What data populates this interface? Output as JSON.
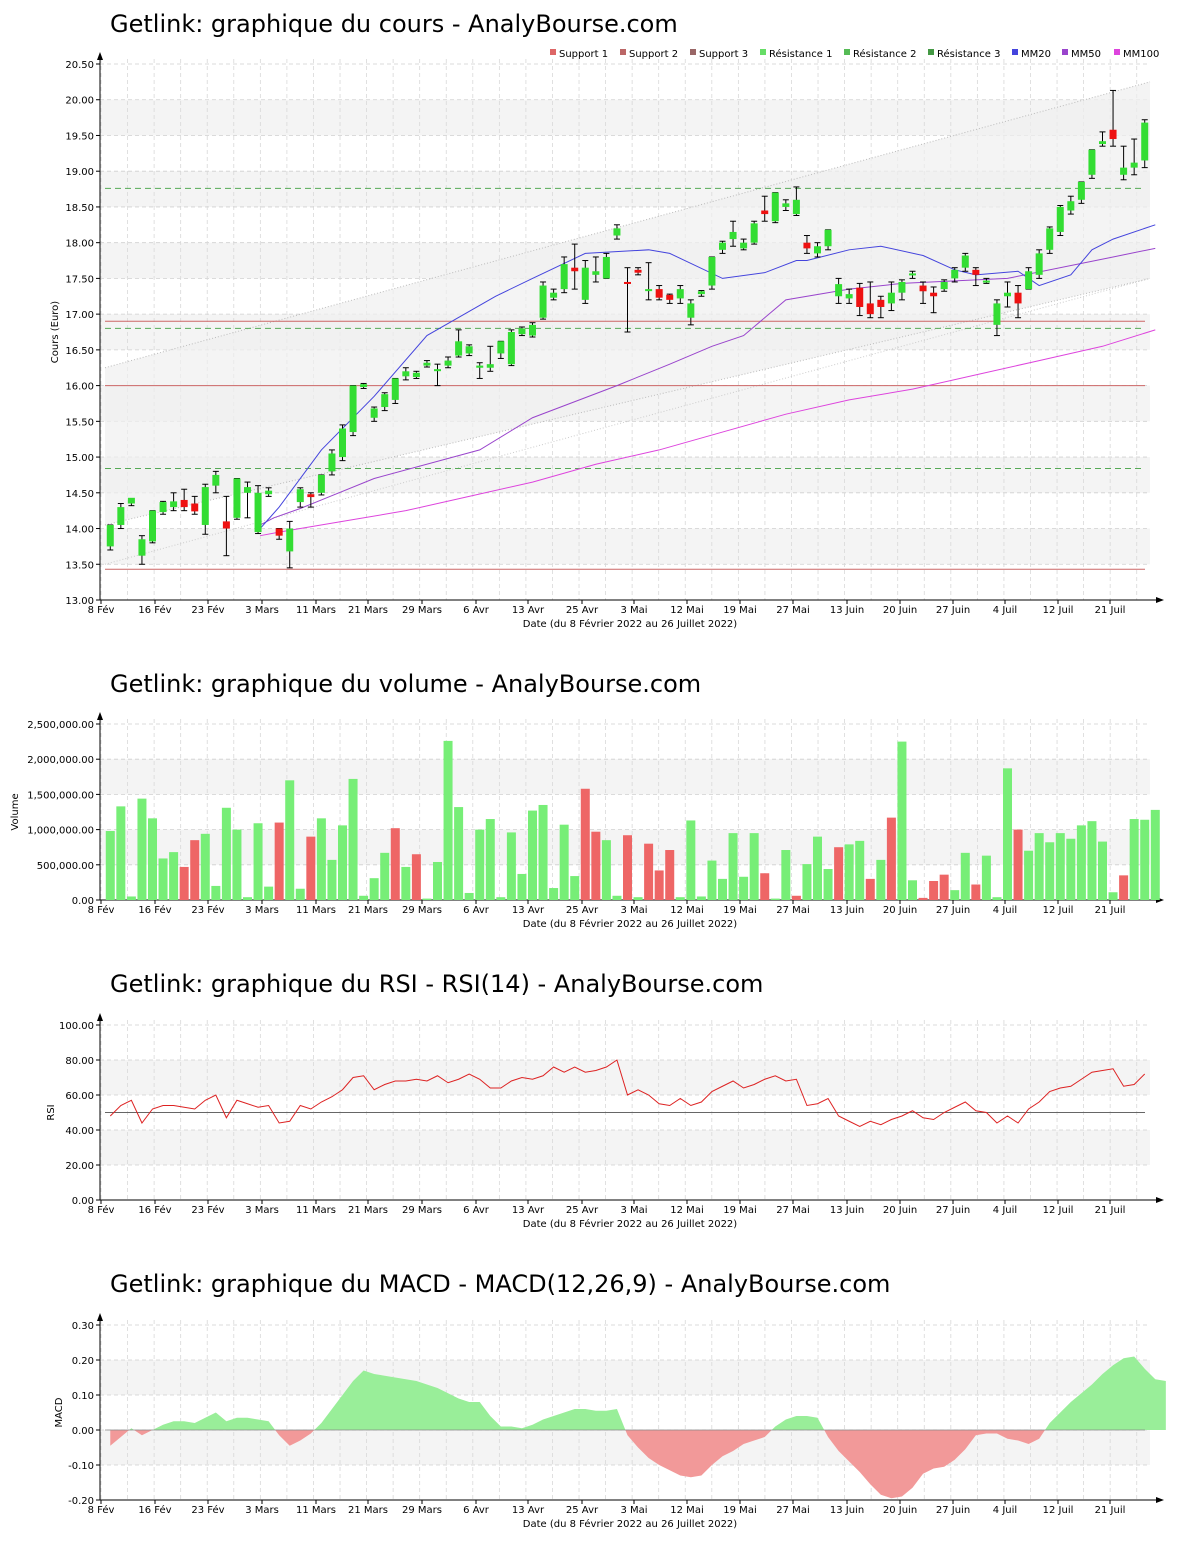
{
  "xlabel": "Date (du 8 Février 2022 au 26 Juillet 2022)",
  "x_ticks": [
    "8 Fév",
    "16 Fév",
    "23 Fév",
    "3 Mars",
    "11 Mars",
    "21 Mars",
    "29 Mars",
    "6 Avr",
    "13 Avr",
    "25 Avr",
    "3 Mai",
    "12 Mai",
    "19 Mai",
    "27 Mai",
    "13 Juin",
    "20 Juin",
    "27 Juin",
    "4 Juil",
    "12 Juil",
    "21 Juil"
  ],
  "colors": {
    "up": "#33dd33",
    "down": "#ee1111",
    "vol_up": "#77ee77",
    "vol_down": "#ee6666",
    "support": "#cc6666",
    "resistance": "#55aa55",
    "mm20": "#4444dd",
    "mm50": "#9944cc",
    "mm100": "#dd44dd",
    "rsi": "#dd2222"
  },
  "chart_data": [
    {
      "type": "candlestick",
      "title": "Getlink: graphique du cours - AnalyBourse.com",
      "ylabel": "Cours (Euro)",
      "xlabel": "Date (du 8 Février 2022 au 26 Juillet 2022)",
      "ylim": [
        13.0,
        20.5
      ],
      "y_ticks": [
        "13.00",
        "13.50",
        "14.00",
        "14.50",
        "15.00",
        "15.50",
        "16.00",
        "16.50",
        "17.00",
        "17.50",
        "18.00",
        "18.50",
        "19.00",
        "19.50",
        "20.00",
        "20.50"
      ],
      "legend": {
        "placement": "top-right",
        "entries": [
          {
            "name": "Support 1",
            "color": "#dd6666"
          },
          {
            "name": "Support 2",
            "color": "#bb6666"
          },
          {
            "name": "Support 3",
            "color": "#996666"
          },
          {
            "name": "Résistance 1",
            "color": "#66dd66"
          },
          {
            "name": "Résistance 2",
            "color": "#55bb55"
          },
          {
            "name": "Résistance 3",
            "color": "#449944"
          },
          {
            "name": "MM20",
            "color": "#4444dd"
          },
          {
            "name": "MM50",
            "color": "#9944cc"
          },
          {
            "name": "MM100",
            "color": "#dd44dd"
          }
        ]
      },
      "supports": [
        16.0,
        16.9,
        13.43
      ],
      "resistances": [
        18.76,
        16.8,
        14.84
      ],
      "candles": [
        [
          13.75,
          14.05,
          13.7,
          14.05
        ],
        [
          14.05,
          14.3,
          14.0,
          14.35
        ],
        [
          14.35,
          14.43,
          14.32,
          14.42
        ],
        [
          13.62,
          13.85,
          13.5,
          13.9
        ],
        [
          13.82,
          14.25,
          13.8,
          14.25
        ],
        [
          14.23,
          14.37,
          14.2,
          14.38
        ],
        [
          14.3,
          14.38,
          14.25,
          14.5
        ],
        [
          14.4,
          14.3,
          14.25,
          14.55
        ],
        [
          14.35,
          14.24,
          14.2,
          14.45
        ],
        [
          14.05,
          14.58,
          13.92,
          14.62
        ],
        [
          14.6,
          14.75,
          14.5,
          14.8
        ],
        [
          14.1,
          14.0,
          13.62,
          14.45
        ],
        [
          14.15,
          14.7,
          14.13,
          14.7
        ],
        [
          14.5,
          14.58,
          14.15,
          14.65
        ],
        [
          13.95,
          14.5,
          13.93,
          14.6
        ],
        [
          14.48,
          14.53,
          14.45,
          14.57
        ],
        [
          14.0,
          13.9,
          13.85,
          14.0
        ],
        [
          13.68,
          14.0,
          13.45,
          14.1
        ],
        [
          14.37,
          14.55,
          14.3,
          14.57
        ],
        [
          14.48,
          14.44,
          14.3,
          14.5
        ],
        [
          14.5,
          14.75,
          14.47,
          14.75
        ],
        [
          14.8,
          15.05,
          14.75,
          15.1
        ],
        [
          15.0,
          15.4,
          14.95,
          15.45
        ],
        [
          15.35,
          16.0,
          15.3,
          16.0
        ],
        [
          15.98,
          16.02,
          15.96,
          16.03
        ],
        [
          15.55,
          15.68,
          15.5,
          15.7
        ],
        [
          15.7,
          15.88,
          15.65,
          15.9
        ],
        [
          15.8,
          16.1,
          15.75,
          16.1
        ],
        [
          16.13,
          16.2,
          16.08,
          16.25
        ],
        [
          16.12,
          16.18,
          16.1,
          16.2
        ],
        [
          16.28,
          16.32,
          16.26,
          16.35
        ],
        [
          16.22,
          16.23,
          16.0,
          16.3
        ],
        [
          16.28,
          16.35,
          16.25,
          16.4
        ],
        [
          16.42,
          16.62,
          16.4,
          16.78
        ],
        [
          16.45,
          16.55,
          16.42,
          16.57
        ],
        [
          16.25,
          16.28,
          16.1,
          16.32
        ],
        [
          16.25,
          16.3,
          16.2,
          16.55
        ],
        [
          16.45,
          16.62,
          16.38,
          16.62
        ],
        [
          16.3,
          16.75,
          16.28,
          16.78
        ],
        [
          16.72,
          16.8,
          16.7,
          16.82
        ],
        [
          16.7,
          16.85,
          16.68,
          16.88
        ],
        [
          16.95,
          17.4,
          16.93,
          17.45
        ],
        [
          17.23,
          17.3,
          17.2,
          17.35
        ],
        [
          17.35,
          17.7,
          17.3,
          17.8
        ],
        [
          17.65,
          17.6,
          17.35,
          17.98
        ],
        [
          17.2,
          17.65,
          17.15,
          17.75
        ],
        [
          17.55,
          17.6,
          17.45,
          17.8
        ],
        [
          17.5,
          17.8,
          17.5,
          17.85
        ],
        [
          18.1,
          18.2,
          18.05,
          18.25
        ],
        [
          17.45,
          17.44,
          16.75,
          17.65
        ],
        [
          17.62,
          17.58,
          17.55,
          17.65
        ],
        [
          17.35,
          17.35,
          17.2,
          17.72
        ],
        [
          17.35,
          17.23,
          17.2,
          17.4
        ],
        [
          17.27,
          17.2,
          17.15,
          17.28
        ],
        [
          17.22,
          17.35,
          17.15,
          17.4
        ],
        [
          16.95,
          17.15,
          16.85,
          17.2
        ],
        [
          17.28,
          17.32,
          17.25,
          17.33
        ],
        [
          17.4,
          17.8,
          17.35,
          17.8
        ],
        [
          17.9,
          18.0,
          17.85,
          18.02
        ],
        [
          18.05,
          18.15,
          17.95,
          18.3
        ],
        [
          17.92,
          18.0,
          17.9,
          18.05
        ],
        [
          18.0,
          18.27,
          17.98,
          18.3
        ],
        [
          18.45,
          18.4,
          18.3,
          18.65
        ],
        [
          18.3,
          18.7,
          18.28,
          18.7
        ],
        [
          18.5,
          18.55,
          18.45,
          18.6
        ],
        [
          18.4,
          18.6,
          18.38,
          18.78
        ],
        [
          18.0,
          17.92,
          17.85,
          18.1
        ],
        [
          17.85,
          17.95,
          17.8,
          18.0
        ],
        [
          17.95,
          18.18,
          17.9,
          18.18
        ],
        [
          17.25,
          17.42,
          17.15,
          17.5
        ],
        [
          17.22,
          17.28,
          17.15,
          17.35
        ],
        [
          17.37,
          17.1,
          16.98,
          17.43
        ],
        [
          17.15,
          17.0,
          16.95,
          17.45
        ],
        [
          17.2,
          17.1,
          16.95,
          17.25
        ],
        [
          17.15,
          17.3,
          17.05,
          17.45
        ],
        [
          17.3,
          17.45,
          17.2,
          17.48
        ],
        [
          17.55,
          17.57,
          17.5,
          17.6
        ],
        [
          17.4,
          17.32,
          17.15,
          17.45
        ],
        [
          17.3,
          17.25,
          17.02,
          17.38
        ],
        [
          17.35,
          17.45,
          17.32,
          17.48
        ],
        [
          17.5,
          17.62,
          17.45,
          17.65
        ],
        [
          17.65,
          17.82,
          17.6,
          17.85
        ],
        [
          17.62,
          17.55,
          17.4,
          17.65
        ],
        [
          17.45,
          17.47,
          17.43,
          17.5
        ],
        [
          16.85,
          17.15,
          16.7,
          17.2
        ],
        [
          17.25,
          17.3,
          17.1,
          17.45
        ],
        [
          17.3,
          17.15,
          16.95,
          17.4
        ],
        [
          17.35,
          17.6,
          17.35,
          17.65
        ],
        [
          17.55,
          17.85,
          17.5,
          17.9
        ],
        [
          17.9,
          18.2,
          17.85,
          18.22
        ],
        [
          18.15,
          18.5,
          18.1,
          18.52
        ],
        [
          18.45,
          18.58,
          18.4,
          18.65
        ],
        [
          18.6,
          18.85,
          18.55,
          18.85
        ],
        [
          18.95,
          19.3,
          18.9,
          19.3
        ],
        [
          19.38,
          19.42,
          19.35,
          19.55
        ],
        [
          19.58,
          19.45,
          19.35,
          20.13
        ],
        [
          18.95,
          19.05,
          18.88,
          19.35
        ],
        [
          19.05,
          19.12,
          18.95,
          19.45
        ],
        [
          19.15,
          19.68,
          19.05,
          19.72
        ]
      ],
      "mm20": [
        [
          14.2,
          14.0
        ],
        [
          14.8,
          14.1
        ],
        [
          16.0,
          14.3
        ],
        [
          20.0,
          15.1
        ],
        [
          25.0,
          15.85
        ],
        [
          30.0,
          16.7
        ],
        [
          36.5,
          17.25
        ],
        [
          40.0,
          17.5
        ],
        [
          45.0,
          17.85
        ],
        [
          51.0,
          17.9
        ],
        [
          53.0,
          17.85
        ],
        [
          58.0,
          17.5
        ],
        [
          62.0,
          17.58
        ],
        [
          65.0,
          17.75
        ],
        [
          66.0,
          17.75
        ],
        [
          70.0,
          17.9
        ],
        [
          73.0,
          17.95
        ],
        [
          77.0,
          17.82
        ],
        [
          80.0,
          17.62
        ],
        [
          82.0,
          17.55
        ],
        [
          86.0,
          17.6
        ],
        [
          88.0,
          17.4
        ],
        [
          91.0,
          17.55
        ],
        [
          93.0,
          17.9
        ],
        [
          95.0,
          18.05
        ],
        [
          99.0,
          18.25
        ]
      ],
      "mm50": [
        [
          14.2,
          14.05
        ],
        [
          15.5,
          14.15
        ],
        [
          18.0,
          14.28
        ],
        [
          20.0,
          14.4
        ],
        [
          25.0,
          14.7
        ],
        [
          35.0,
          15.1
        ],
        [
          40.0,
          15.55
        ],
        [
          48.0,
          16.0
        ],
        [
          53.0,
          16.3
        ],
        [
          57.0,
          16.55
        ],
        [
          60.0,
          16.7
        ],
        [
          64.0,
          17.2
        ],
        [
          70.0,
          17.35
        ],
        [
          75.0,
          17.43
        ],
        [
          85.0,
          17.5
        ],
        [
          95.0,
          17.8
        ],
        [
          99.0,
          17.92
        ]
      ],
      "mm100": [
        [
          14.2,
          13.9
        ],
        [
          16.0,
          13.95
        ],
        [
          18.0,
          14.0
        ],
        [
          22.0,
          14.1
        ],
        [
          28.0,
          14.25
        ],
        [
          34.0,
          14.45
        ],
        [
          40.0,
          14.65
        ],
        [
          46.0,
          14.9
        ],
        [
          52.0,
          15.1
        ],
        [
          58.0,
          15.35
        ],
        [
          64.0,
          15.6
        ],
        [
          70.0,
          15.8
        ],
        [
          76.0,
          15.95
        ],
        [
          82.0,
          16.15
        ],
        [
          88.0,
          16.35
        ],
        [
          94.0,
          16.55
        ],
        [
          99.0,
          16.78
        ]
      ]
    },
    {
      "type": "bar",
      "title": "Getlink: graphique du volume - AnalyBourse.com",
      "ylabel": "Volume",
      "xlabel": "Date (du 8 Février 2022 au 26 Juillet 2022)",
      "ylim": [
        0,
        2500000
      ],
      "y_ticks": [
        "0.00",
        "500,000.00",
        "1,000,000.00",
        "1,500,000.00",
        "2,000,000.00",
        "2,500,000.00"
      ],
      "values": [
        980000,
        1330000,
        50000,
        1440000,
        1160000,
        590000,
        680000,
        470000,
        850000,
        940000,
        200000,
        1310000,
        1000000,
        40000,
        1090000,
        190000,
        1100000,
        1700000,
        160000,
        900000,
        1160000,
        570000,
        1060000,
        1720000,
        60000,
        310000,
        670000,
        1020000,
        470000,
        650000,
        20000,
        540000,
        2260000,
        1320000,
        100000,
        1000000,
        1150000,
        40000,
        960000,
        370000,
        1270000,
        1350000,
        170000,
        1070000,
        340000,
        1580000,
        970000,
        850000,
        60000,
        920000,
        40000,
        800000,
        420000,
        710000,
        40000,
        1130000,
        50000,
        560000,
        300000,
        950000,
        330000,
        950000,
        380000,
        20000,
        710000,
        60000,
        510000,
        900000,
        440000,
        750000,
        790000,
        840000,
        300000,
        570000,
        1170000,
        2250000,
        280000,
        30000,
        270000,
        360000,
        140000,
        670000,
        220000,
        630000,
        40000,
        1870000,
        1000000,
        700000,
        950000,
        820000,
        950000,
        870000,
        1060000,
        1120000,
        830000,
        110000,
        350000,
        1150000,
        1140000,
        1280000
      ],
      "down": [
        7,
        8,
        16,
        19,
        27,
        29,
        45,
        46,
        49,
        51,
        52,
        53,
        62,
        65,
        69,
        72,
        74,
        77,
        78,
        79,
        82,
        86,
        96
      ]
    },
    {
      "type": "line",
      "title": "Getlink: graphique du RSI - RSI(14) - AnalyBourse.com",
      "ylabel": "RSI",
      "xlabel": "Date (du 8 Février 2022 au 26 Juillet 2022)",
      "ylim": [
        0,
        100
      ],
      "y_ticks": [
        "0.00",
        "20.00",
        "40.00",
        "60.00",
        "80.00",
        "100.00"
      ],
      "reference": 50,
      "values": [
        48,
        54,
        57,
        44,
        52,
        54,
        54,
        53,
        52,
        57,
        60,
        47,
        57,
        55,
        53,
        54,
        44,
        45,
        54,
        52,
        56,
        59,
        63,
        70,
        71,
        63,
        66,
        68,
        68,
        69,
        68,
        71,
        67,
        69,
        72,
        69,
        64,
        64,
        68,
        70,
        69,
        71,
        76,
        73,
        76,
        73,
        74,
        76,
        80,
        60,
        63,
        60,
        55,
        54,
        58,
        54,
        56,
        62,
        65,
        68,
        64,
        66,
        69,
        71,
        68,
        69,
        54,
        55,
        58,
        48,
        45,
        42,
        45,
        43,
        46,
        48,
        51,
        47,
        46,
        50,
        53,
        56,
        51,
        50,
        44,
        48,
        44,
        52,
        56,
        62,
        64,
        65,
        69,
        73,
        74,
        75,
        65,
        66,
        72
      ]
    },
    {
      "type": "area",
      "title": "Getlink: graphique du MACD - MACD(12,26,9) - AnalyBourse.com",
      "ylabel": "MACD",
      "xlabel": "Date (du 8 Février 2022 au 26 Juillet 2022)",
      "ylim": [
        -0.2,
        0.3
      ],
      "y_ticks": [
        "-0.20",
        "-0.10",
        "0.00",
        "0.10",
        "0.20",
        "0.30"
      ],
      "values": [
        -0.045,
        -0.02,
        0.005,
        -0.015,
        0.0,
        0.015,
        0.025,
        0.025,
        0.02,
        0.035,
        0.05,
        0.025,
        0.035,
        0.035,
        0.03,
        0.025,
        -0.015,
        -0.045,
        -0.03,
        -0.01,
        0.02,
        0.06,
        0.1,
        0.14,
        0.17,
        0.16,
        0.155,
        0.15,
        0.145,
        0.14,
        0.13,
        0.12,
        0.105,
        0.09,
        0.08,
        0.08,
        0.04,
        0.01,
        0.01,
        0.005,
        0.015,
        0.03,
        0.04,
        0.05,
        0.06,
        0.06,
        0.055,
        0.055,
        0.06,
        -0.015,
        -0.05,
        -0.08,
        -0.1,
        -0.115,
        -0.13,
        -0.135,
        -0.13,
        -0.1,
        -0.075,
        -0.06,
        -0.04,
        -0.03,
        -0.02,
        0.01,
        0.03,
        0.04,
        0.04,
        0.035,
        -0.02,
        -0.06,
        -0.09,
        -0.12,
        -0.155,
        -0.185,
        -0.195,
        -0.19,
        -0.165,
        -0.125,
        -0.11,
        -0.105,
        -0.085,
        -0.055,
        -0.015,
        -0.01,
        -0.01,
        -0.025,
        -0.03,
        -0.04,
        -0.025,
        0.02,
        0.05,
        0.08,
        0.105,
        0.13,
        0.16,
        0.185,
        0.205,
        0.21,
        0.175,
        0.145,
        0.14
      ]
    }
  ]
}
